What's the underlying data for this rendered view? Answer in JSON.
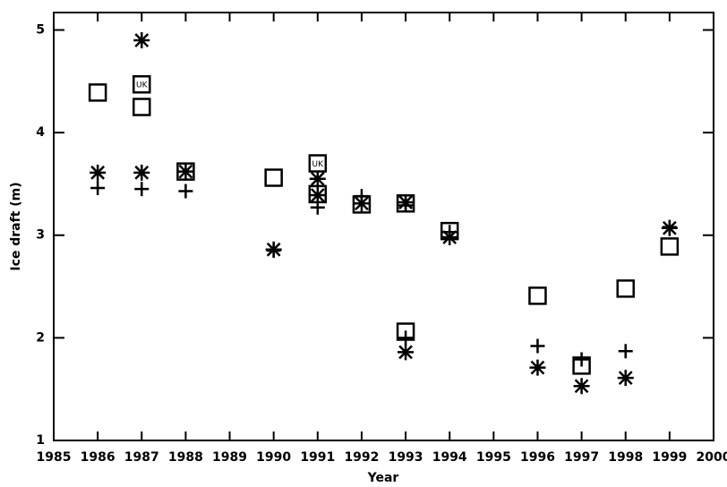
{
  "chart_data": {
    "type": "scatter",
    "x_label": "Year",
    "y_label": "Ice draft (m)",
    "xlim": [
      1985,
      2000
    ],
    "ylim": [
      1,
      5.17
    ],
    "xticks": [
      1985,
      1986,
      1987,
      1988,
      1989,
      1990,
      1991,
      1992,
      1993,
      1994,
      1995,
      1996,
      1997,
      1998,
      1999,
      2000
    ],
    "yticks": [
      1,
      2,
      3,
      4,
      5
    ],
    "series": [
      {
        "marker": "square",
        "color": "#000000",
        "x": [
          1986,
          1987,
          1987,
          1988,
          1990,
          1991,
          1991,
          1992,
          1993,
          1993,
          1994,
          1996,
          1997,
          1998,
          1999
        ],
        "values": [
          4.39,
          4.47,
          4.25,
          3.62,
          3.56,
          3.7,
          3.4,
          3.3,
          3.31,
          2.06,
          3.04,
          2.41,
          1.73,
          2.48,
          2.89
        ]
      },
      {
        "marker": "plus",
        "color": "#000000",
        "x": [
          1986,
          1987,
          1988,
          1990,
          1991,
          1992,
          1993,
          1993,
          1994,
          1996,
          1997,
          1998,
          1999
        ],
        "values": [
          3.46,
          3.45,
          3.43,
          2.85,
          3.27,
          3.38,
          3.29,
          2.0,
          3.03,
          1.92,
          1.79,
          1.87,
          3.08
        ]
      },
      {
        "marker": "asterisk",
        "color": "#000000",
        "x": [
          1986,
          1987,
          1987,
          1988,
          1990,
          1991,
          1991,
          1992,
          1993,
          1993,
          1994,
          1996,
          1997,
          1998,
          1999
        ],
        "values": [
          3.61,
          4.9,
          3.61,
          3.62,
          2.86,
          3.55,
          3.39,
          3.31,
          3.32,
          1.86,
          2.98,
          1.71,
          1.53,
          1.61,
          3.07
        ]
      }
    ],
    "annotations": [
      {
        "text": "UK",
        "x": 1987,
        "y": 4.47
      },
      {
        "text": "UK",
        "x": 1991,
        "y": 3.7
      }
    ]
  }
}
